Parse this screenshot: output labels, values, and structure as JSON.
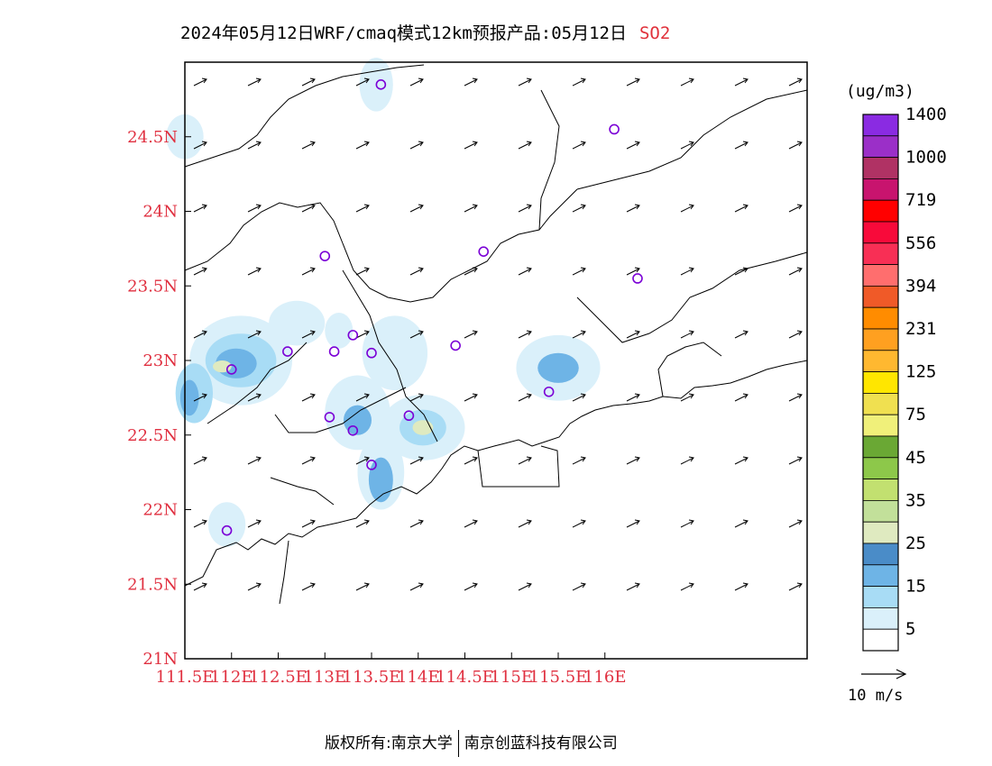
{
  "title": {
    "main": "2024年05月12日WRF/cmaq模式12km预报产品:05月12日",
    "pollutant": "SO2"
  },
  "colorbar": {
    "unit": "(ug/m3)",
    "colors": [
      "#ffffff",
      "#daf0fa",
      "#a8dcf5",
      "#6eb4e6",
      "#4a8cc8",
      "#dfeac0",
      "#c2e09a",
      "#c2e070",
      "#8dc84a",
      "#6aa834",
      "#f0f07a",
      "#f0e050",
      "#ffe600",
      "#ffb830",
      "#ffa020",
      "#ff8c00",
      "#f05a28",
      "#ff6e6e",
      "#f82f55",
      "#f80a3a",
      "#ff0000",
      "#c8146e",
      "#b03264",
      "#9b2fc8",
      "#8a2be2"
    ],
    "labels": [
      "5",
      "15",
      "25",
      "35",
      "45",
      "75",
      "125",
      "231",
      "394",
      "556",
      "719",
      "1000",
      "1400"
    ]
  },
  "axes": {
    "x_ticks": [
      "111.5E",
      "112E",
      "112.5E",
      "113E",
      "113.5E",
      "114E",
      "114.5E",
      "115E",
      "115.5E",
      "116E"
    ],
    "y_ticks": [
      "21N",
      "21.5N",
      "22N",
      "22.5N",
      "23N",
      "23.5N",
      "24N",
      "24.5N"
    ]
  },
  "stations": [
    [
      113.6,
      24.85
    ],
    [
      116.1,
      24.55
    ],
    [
      113.0,
      23.7
    ],
    [
      114.7,
      23.73
    ],
    [
      116.35,
      23.55
    ],
    [
      113.3,
      23.17
    ],
    [
      113.1,
      23.06
    ],
    [
      112.6,
      23.06
    ],
    [
      113.5,
      23.05
    ],
    [
      114.4,
      23.1
    ],
    [
      112.0,
      22.94
    ],
    [
      115.4,
      22.79
    ],
    [
      113.05,
      22.62
    ],
    [
      113.9,
      22.63
    ],
    [
      113.3,
      22.53
    ],
    [
      113.5,
      22.3
    ],
    [
      111.95,
      21.86
    ]
  ],
  "concentration_blobs": [
    {
      "lon": 112.1,
      "lat": 23.0,
      "rx": 0.55,
      "ry": 0.3,
      "level": 1
    },
    {
      "lon": 112.1,
      "lat": 23.0,
      "rx": 0.38,
      "ry": 0.18,
      "level": 2
    },
    {
      "lon": 112.05,
      "lat": 22.98,
      "rx": 0.22,
      "ry": 0.1,
      "level": 3
    },
    {
      "lon": 111.9,
      "lat": 22.96,
      "rx": 0.1,
      "ry": 0.04,
      "level": 5
    },
    {
      "lon": 111.6,
      "lat": 22.78,
      "rx": 0.2,
      "ry": 0.2,
      "level": 2
    },
    {
      "lon": 111.55,
      "lat": 22.75,
      "rx": 0.1,
      "ry": 0.12,
      "level": 3
    },
    {
      "lon": 113.35,
      "lat": 22.65,
      "rx": 0.35,
      "ry": 0.25,
      "level": 1
    },
    {
      "lon": 113.35,
      "lat": 22.6,
      "rx": 0.15,
      "ry": 0.1,
      "level": 3
    },
    {
      "lon": 113.6,
      "lat": 22.25,
      "rx": 0.25,
      "ry": 0.25,
      "level": 1
    },
    {
      "lon": 113.6,
      "lat": 22.2,
      "rx": 0.13,
      "ry": 0.15,
      "level": 3
    },
    {
      "lon": 114.05,
      "lat": 22.55,
      "rx": 0.45,
      "ry": 0.22,
      "level": 1
    },
    {
      "lon": 114.05,
      "lat": 22.55,
      "rx": 0.25,
      "ry": 0.12,
      "level": 2
    },
    {
      "lon": 114.05,
      "lat": 22.55,
      "rx": 0.11,
      "ry": 0.05,
      "level": 5
    },
    {
      "lon": 115.5,
      "lat": 22.95,
      "rx": 0.45,
      "ry": 0.22,
      "level": 1
    },
    {
      "lon": 115.5,
      "lat": 22.95,
      "rx": 0.22,
      "ry": 0.1,
      "level": 3
    },
    {
      "lon": 113.75,
      "lat": 23.05,
      "rx": 0.35,
      "ry": 0.25,
      "level": 1
    },
    {
      "lon": 113.55,
      "lat": 24.85,
      "rx": 0.18,
      "ry": 0.18,
      "level": 1
    },
    {
      "lon": 111.5,
      "lat": 24.5,
      "rx": 0.2,
      "ry": 0.15,
      "level": 1
    },
    {
      "lon": 111.95,
      "lat": 21.9,
      "rx": 0.2,
      "ry": 0.15,
      "level": 1
    },
    {
      "lon": 113.15,
      "lat": 23.2,
      "rx": 0.15,
      "ry": 0.12,
      "level": 1
    },
    {
      "lon": 112.7,
      "lat": 23.25,
      "rx": 0.3,
      "ry": 0.15,
      "level": 1
    }
  ],
  "wind_reference": "10 m/s",
  "footer": {
    "copyright": "版权所有:南京大学",
    "company": "南京创蓝科技有限公司"
  }
}
